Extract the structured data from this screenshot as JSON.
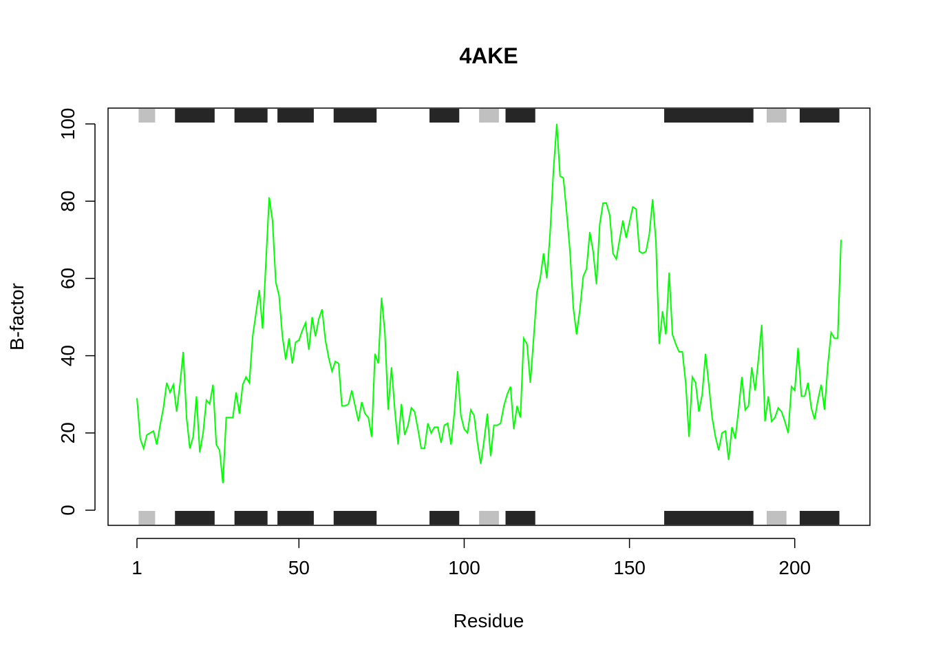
{
  "chart_data": {
    "type": "line",
    "title": "4AKE",
    "xlabel": "Residue",
    "ylabel": "B-factor",
    "xlim": [
      1,
      214
    ],
    "ylim": [
      0,
      100
    ],
    "x_ticks": [
      1,
      50,
      100,
      150,
      200
    ],
    "y_ticks": [
      0,
      20,
      40,
      60,
      80,
      100
    ],
    "grid": false,
    "line_color": "#00ff00",
    "sse_blocks": [
      {
        "start": 2,
        "end": 6,
        "kind": "strand",
        "color": "#c0c0c0"
      },
      {
        "start": 13,
        "end": 24,
        "kind": "helix",
        "color": "#262626"
      },
      {
        "start": 31,
        "end": 40,
        "kind": "helix",
        "color": "#262626"
      },
      {
        "start": 44,
        "end": 54,
        "kind": "helix",
        "color": "#262626"
      },
      {
        "start": 61,
        "end": 73,
        "kind": "helix",
        "color": "#262626"
      },
      {
        "start": 90,
        "end": 98,
        "kind": "helix",
        "color": "#262626"
      },
      {
        "start": 105,
        "end": 110,
        "kind": "strand",
        "color": "#c0c0c0"
      },
      {
        "start": 113,
        "end": 121,
        "kind": "helix",
        "color": "#262626"
      },
      {
        "start": 161,
        "end": 187,
        "kind": "helix",
        "color": "#262626"
      },
      {
        "start": 192,
        "end": 197,
        "kind": "strand",
        "color": "#c0c0c0"
      },
      {
        "start": 202,
        "end": 213,
        "kind": "helix",
        "color": "#262626"
      }
    ],
    "series": [
      {
        "x": [
          1,
          2,
          3,
          4,
          5,
          6,
          7,
          8,
          9,
          10,
          11,
          12,
          13,
          14,
          15,
          16,
          17,
          18,
          19,
          20,
          21,
          22,
          23,
          24,
          25,
          26,
          27,
          28,
          29,
          30,
          31,
          32,
          33,
          34,
          35,
          36,
          37,
          38,
          39,
          40,
          41,
          42,
          43,
          44,
          45,
          46,
          47,
          48,
          49,
          50,
          51,
          52,
          53,
          54,
          55,
          56,
          57,
          58,
          59,
          60,
          61,
          62,
          63,
          64,
          65,
          66,
          67,
          68,
          69,
          70,
          71,
          72,
          73,
          74,
          75,
          76,
          77,
          78,
          79,
          80,
          81,
          82,
          83,
          84,
          85,
          86,
          87,
          88,
          89,
          90,
          91,
          92,
          93,
          94,
          95,
          96,
          97,
          98,
          99,
          100,
          101,
          102,
          103,
          104,
          105,
          106,
          107,
          108,
          109,
          110,
          111,
          112,
          113,
          114,
          115,
          116,
          117,
          118,
          119,
          120,
          121,
          122,
          123,
          124,
          125,
          126,
          127,
          128,
          129,
          130,
          131,
          132,
          133,
          134,
          135,
          136,
          137,
          138,
          139,
          140,
          141,
          142,
          143,
          144,
          145,
          146,
          147,
          148,
          149,
          150,
          151,
          152,
          153,
          154,
          155,
          156,
          157,
          158,
          159,
          160,
          161,
          162,
          163,
          164,
          165,
          166,
          167,
          168,
          169,
          170,
          171,
          172,
          173,
          174,
          175,
          176,
          177,
          178,
          179,
          180,
          181,
          182,
          183,
          184,
          185,
          186,
          187,
          188,
          189,
          190,
          191,
          192,
          193,
          194,
          195,
          196,
          197,
          198,
          199,
          200,
          201,
          202,
          203,
          204,
          205,
          206,
          207,
          208,
          209,
          210,
          211,
          212,
          213,
          214
        ],
        "values": [
          29,
          18.5,
          16,
          19.5,
          20,
          20.5,
          17,
          22,
          26.5,
          33,
          30.5,
          32.5,
          25.5,
          32.5,
          41,
          24,
          16,
          19,
          29.5,
          15,
          20,
          28.5,
          27.5,
          32.5,
          17,
          15.5,
          7,
          24,
          24,
          24,
          30.5,
          25,
          32.5,
          34.5,
          33,
          45,
          51,
          57,
          47,
          64,
          81,
          75,
          59,
          55.5,
          45,
          39,
          44.5,
          38,
          43.5,
          44,
          46.5,
          48.5,
          41.5,
          50,
          45,
          49.5,
          52,
          44,
          39.5,
          36,
          38.5,
          38,
          27,
          27,
          27.5,
          31,
          27,
          23,
          28,
          25,
          24,
          19,
          40.5,
          38,
          55,
          46,
          26,
          37,
          26,
          17,
          27.5,
          19.5,
          22,
          26.5,
          25.5,
          21,
          16,
          16,
          22.5,
          20,
          21.5,
          21.5,
          17.5,
          22,
          22.5,
          17,
          25,
          36,
          24.5,
          21,
          20,
          26,
          24.5,
          17.5,
          12,
          18,
          25,
          14,
          22,
          22,
          22.5,
          27,
          30,
          32,
          21,
          27,
          24,
          44.5,
          43,
          33,
          44.5,
          56.5,
          60,
          66.5,
          60,
          72,
          88,
          100,
          86.5,
          86,
          77,
          67,
          52.5,
          45.5,
          52,
          60.5,
          62.5,
          72,
          67,
          58.5,
          74,
          79.5,
          79.5,
          76.5,
          66.5,
          65,
          70,
          75,
          70.5,
          74.5,
          78.5,
          78,
          67,
          66.5,
          67,
          71.5,
          80.5,
          69.5,
          43,
          51.5,
          45.5,
          61.5,
          45.5,
          43,
          41,
          41,
          33,
          19,
          34.5,
          33,
          25.5,
          30,
          40.5,
          32.5,
          24,
          19,
          15.5,
          20,
          20.5,
          13,
          21.5,
          18.5,
          26,
          34.5,
          26,
          27,
          37,
          31,
          39,
          48,
          23,
          29.5,
          23,
          24,
          26.5,
          25.5,
          23,
          20,
          32,
          31,
          42,
          29.5,
          29.5,
          33,
          26.5,
          23.5,
          28.5,
          32.5,
          26,
          37.5,
          46,
          44.5,
          44.5,
          70
        ]
      }
    ]
  }
}
